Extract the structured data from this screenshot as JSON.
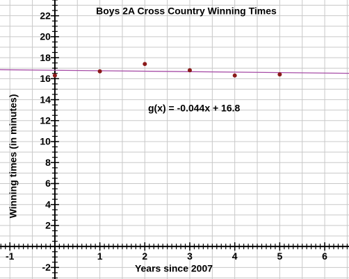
{
  "chart_data": {
    "type": "scatter",
    "title": "Boys 2A Cross Country Winning Times",
    "x_label": "Years since 2007",
    "y_label": "Winning times (in minutes)",
    "annotation": "g(x) = -0.044x + 16.8",
    "series": [
      {
        "name": "Winning times",
        "color": "#8b1a1a",
        "x": [
          0,
          1,
          2,
          3,
          4,
          5
        ],
        "values": [
          16.3,
          16.7,
          17.4,
          16.8,
          16.3,
          16.4
        ]
      }
    ],
    "trendline": {
      "slope": -0.044,
      "intercept": 16.8,
      "color": "#a64ca6"
    },
    "xlim": [
      -1.22,
      6.54
    ],
    "ylim": [
      -3.1,
      23.5
    ],
    "xticks": [
      -1,
      1,
      2,
      3,
      4,
      5,
      6
    ],
    "yticks": [
      -2,
      2,
      4,
      6,
      8,
      10,
      12,
      14,
      16,
      18,
      20,
      22
    ],
    "grid": true
  }
}
